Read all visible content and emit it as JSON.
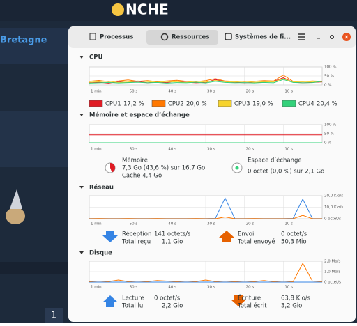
{
  "site": {
    "logo": "NCHE",
    "forum": "Bretagne",
    "page": "1"
  },
  "window": {
    "tabs": [
      "Processus",
      "Ressources",
      "Systèmes de fi..."
    ]
  },
  "chart_data": [
    {
      "type": "line",
      "title": "CPU",
      "xlim": [
        60,
        0
      ],
      "xticks": [
        {
          "value": 60,
          "label": "1 min"
        },
        {
          "value": 50,
          "label": "50 s"
        },
        {
          "value": 40,
          "label": "40 s"
        },
        {
          "value": 30,
          "label": "30 s"
        },
        {
          "value": 20,
          "label": "20 s"
        },
        {
          "value": 10,
          "label": "10 s"
        }
      ],
      "ylim": [
        0,
        100
      ],
      "yticks": [
        {
          "value": 100,
          "label": "100 %"
        },
        {
          "value": 50,
          "label": "50 %"
        },
        {
          "value": 0,
          "label": "0 %"
        }
      ],
      "series": [
        {
          "name": "CPU1",
          "current": "17,2 %",
          "color": "#e01b24",
          "values": [
            12,
            15,
            10,
            18,
            14,
            20,
            12,
            16,
            13,
            22,
            15,
            12,
            14,
            30,
            18,
            15,
            12,
            14,
            16,
            20,
            40,
            15,
            12,
            14,
            17
          ]
        },
        {
          "name": "CPU2",
          "current": "20,0 %",
          "color": "#ff7800",
          "values": [
            20,
            25,
            18,
            22,
            28,
            20,
            24,
            18,
            22,
            26,
            20,
            18,
            24,
            35,
            22,
            20,
            18,
            20,
            24,
            22,
            55,
            20,
            18,
            22,
            20
          ]
        },
        {
          "name": "CPU3",
          "current": "19,0 %",
          "color": "#f6d32d",
          "values": [
            15,
            18,
            20,
            14,
            16,
            22,
            18,
            15,
            19,
            17,
            14,
            20,
            16,
            25,
            18,
            16,
            20,
            15,
            18,
            17,
            35,
            16,
            19,
            17,
            19
          ]
        },
        {
          "name": "CPU4",
          "current": "20,4 %",
          "color": "#33d17a",
          "values": [
            10,
            12,
            14,
            11,
            13,
            15,
            12,
            14,
            10,
            13,
            12,
            15,
            11,
            20,
            14,
            12,
            13,
            11,
            14,
            12,
            30,
            14,
            12,
            13,
            20
          ]
        }
      ]
    },
    {
      "type": "line",
      "title": "Mémoire et espace d’échange",
      "xlim": [
        60,
        0
      ],
      "xticks": [
        {
          "value": 60,
          "label": "1 min"
        },
        {
          "value": 50,
          "label": "50 s"
        },
        {
          "value": 40,
          "label": "40 s"
        },
        {
          "value": 30,
          "label": "30 s"
        },
        {
          "value": 20,
          "label": "20 s"
        },
        {
          "value": 10,
          "label": "10 s"
        }
      ],
      "ylim": [
        0,
        100
      ],
      "yticks": [
        {
          "value": 100,
          "label": "100 %"
        },
        {
          "value": 50,
          "label": "50 %"
        },
        {
          "value": 0,
          "label": "0 %"
        }
      ],
      "series": [
        {
          "name": "Mémoire",
          "color": "#e01b24",
          "values": [
            43.6,
            43.6,
            43.6,
            43.6,
            43.6,
            43.6,
            43.6,
            43.6,
            43.6,
            43.6,
            43.6,
            43.6,
            43.6,
            43.6,
            43.6,
            43.6,
            43.6,
            43.6,
            43.6,
            43.6,
            43.6,
            43.6,
            43.6,
            43.6,
            43.6
          ]
        },
        {
          "name": "Espace d’échange",
          "color": "#33d17a",
          "values": [
            0,
            0,
            0,
            0,
            0,
            0,
            0,
            0,
            0,
            0,
            0,
            0,
            0,
            0,
            0,
            0,
            0,
            0,
            0,
            0,
            0,
            0,
            0,
            0,
            0
          ]
        }
      ],
      "stats": [
        "7,3 Go (43,6 %) sur 16,7 Go",
        "Cache 4,4 Go",
        "0 octet (0,0 %) sur 2,1 Go"
      ]
    },
    {
      "type": "line",
      "title": "Réseau",
      "xlim": [
        60,
        0
      ],
      "xticks": [
        {
          "value": 60,
          "label": "1 min"
        },
        {
          "value": 50,
          "label": "50 s"
        },
        {
          "value": 40,
          "label": "40 s"
        },
        {
          "value": 30,
          "label": "30 s"
        },
        {
          "value": 20,
          "label": "20 s"
        },
        {
          "value": 10,
          "label": "10 s"
        }
      ],
      "ylim": [
        0,
        20
      ],
      "yticks": [
        {
          "value": 20,
          "label": "20,0 Kio/s"
        },
        {
          "value": 10,
          "label": "10,0 Kio/s"
        },
        {
          "value": 0,
          "label": "0 octet/s"
        }
      ],
      "series": [
        {
          "name": "Réception",
          "color": "#3584e4",
          "values": [
            0.1,
            0.1,
            0.2,
            0.1,
            0.1,
            0.1,
            0.2,
            0.1,
            0.1,
            0.1,
            0.2,
            0.1,
            0.1,
            0.3,
            18,
            0.2,
            0.1,
            0.1,
            0.1,
            0.2,
            0.1,
            0.3,
            17,
            0.2,
            0.1
          ]
        },
        {
          "name": "Envoi",
          "color": "#ff7800",
          "values": [
            0,
            0.1,
            0,
            0,
            0.1,
            0,
            0,
            0.1,
            0,
            0,
            0,
            0.1,
            0,
            0,
            1.5,
            0,
            0,
            0.1,
            0,
            0,
            0,
            0,
            3,
            0,
            0
          ]
        }
      ],
      "stats": [
        {
          "label": "Réception",
          "value": "141 octets/s"
        },
        {
          "label": "Total reçu",
          "value": "1,1 Gio"
        },
        {
          "label": "Envoi",
          "value": "0 octet/s"
        },
        {
          "label": "Total envoyé",
          "value": "50,3 Mio"
        }
      ]
    },
    {
      "type": "line",
      "title": "Disque",
      "xlim": [
        60,
        0
      ],
      "xticks": [
        {
          "value": 60,
          "label": "1 min"
        },
        {
          "value": 50,
          "label": "50 s"
        },
        {
          "value": 40,
          "label": "40 s"
        },
        {
          "value": 30,
          "label": "30 s"
        },
        {
          "value": 20,
          "label": "20 s"
        },
        {
          "value": 10,
          "label": "10 s"
        }
      ],
      "ylim": [
        0,
        2
      ],
      "yticks": [
        {
          "value": 2,
          "label": "2,0 Mo/s"
        },
        {
          "value": 1,
          "label": "1,0 Mo/s"
        },
        {
          "value": 0,
          "label": "0 octet/s"
        }
      ],
      "series": [
        {
          "name": "Lecture",
          "color": "#3584e4",
          "values": [
            0,
            0,
            0,
            0,
            0,
            0,
            0,
            0,
            0,
            0,
            0,
            0,
            0,
            0,
            0,
            0,
            0,
            0,
            0,
            0,
            0,
            0,
            0,
            0,
            0
          ]
        },
        {
          "name": "Écriture",
          "color": "#ff7800",
          "values": [
            0.05,
            0.1,
            0.05,
            0.2,
            0.05,
            0.1,
            0.05,
            0.15,
            0.1,
            0.05,
            0.1,
            0.05,
            0.2,
            0.05,
            0.1,
            0.05,
            0.1,
            0.05,
            0.15,
            0.05,
            0.1,
            0.05,
            1.8,
            0.1,
            0.05
          ]
        }
      ],
      "stats": [
        {
          "label": "Lecture",
          "value": "0 octet/s"
        },
        {
          "label": "Total lu",
          "value": "2,2 Gio"
        },
        {
          "label": "Écriture",
          "value": "63,8 Kio/s"
        },
        {
          "label": "Total écrit",
          "value": "3,2 Gio"
        }
      ]
    }
  ]
}
